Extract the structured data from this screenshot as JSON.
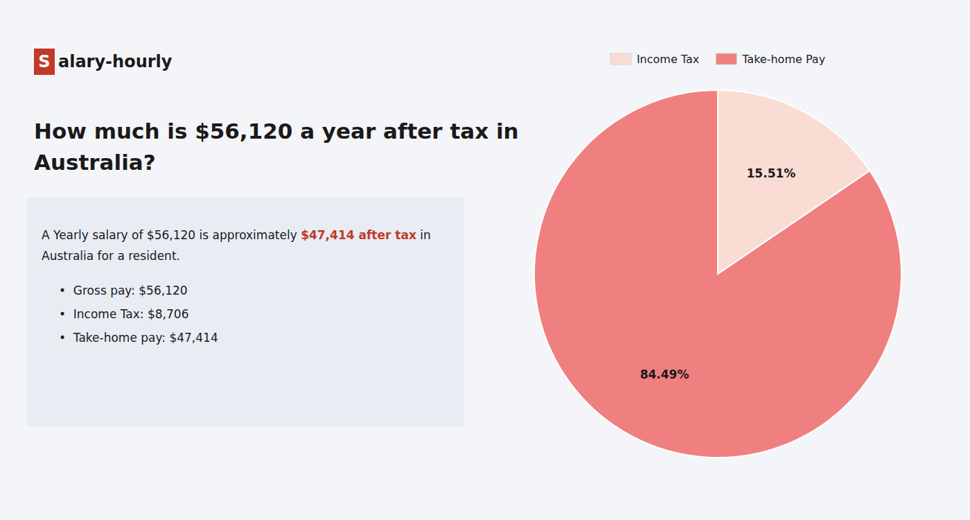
{
  "chart_data": {
    "type": "pie",
    "title": "How much is $56,120 a year after tax in\nAustralia?",
    "annotations": [
      "S",
      "alary-hourly",
      "A Yearly salary of $56,120 is approximately ",
      "$47,414 after tax",
      " in",
      "Australia for a resident.",
      "•  Gross pay: $56,120",
      "•  Income Tax: $8,706",
      "•  Take-home pay: $47,414"
    ],
    "categories": [
      "Income Tax",
      "Take-home Pay"
    ],
    "values": [
      15.51,
      84.49
    ],
    "value_labels": [
      "15.51%",
      "84.49%"
    ],
    "colors": [
      "#f9ddd5",
      "#f08080"
    ],
    "data_labels": true,
    "legend": "top"
  }
}
